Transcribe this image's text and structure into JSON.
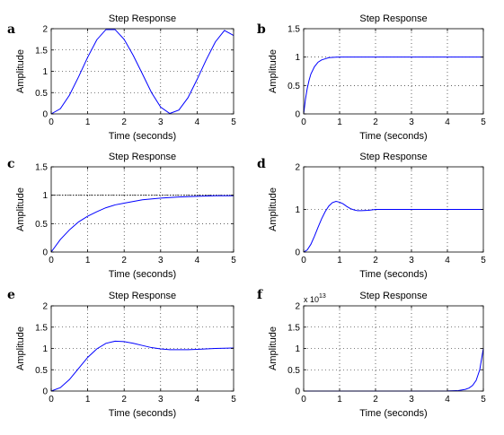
{
  "chart_data": [
    {
      "id": "a",
      "panel_label": "a",
      "type": "line",
      "title": "Step Response",
      "xlabel": "Time (seconds)",
      "ylabel": "Amplitude",
      "xlim": [
        0,
        5
      ],
      "ylim": [
        0,
        2
      ],
      "xticks": [
        0,
        1,
        2,
        3,
        4,
        5
      ],
      "yticks": [
        0,
        0.5,
        1,
        1.5,
        2
      ],
      "ytick_labels": [
        "0",
        "0.5",
        "1",
        "1.5",
        "2"
      ],
      "grid": true,
      "series": [
        {
          "color": "#0000ff",
          "x": [
            0,
            0.25,
            0.5,
            0.75,
            1,
            1.25,
            1.5,
            1.75,
            2,
            2.25,
            2.5,
            2.75,
            3,
            3.25,
            3.5,
            3.75,
            4,
            4.25,
            4.5,
            4.75,
            5
          ],
          "y": [
            0,
            0.12,
            0.44,
            0.87,
            1.33,
            1.74,
            1.98,
            1.98,
            1.75,
            1.37,
            0.94,
            0.5,
            0.16,
            0.01,
            0.09,
            0.38,
            0.81,
            1.27,
            1.69,
            1.96,
            1.84
          ]
        }
      ]
    },
    {
      "id": "b",
      "panel_label": "b",
      "type": "line",
      "title": "Step Response",
      "xlabel": "Time (seconds)",
      "ylabel": "Amplitude",
      "xlim": [
        0,
        5
      ],
      "ylim": [
        0,
        1.5
      ],
      "xticks": [
        0,
        1,
        2,
        3,
        4,
        5
      ],
      "yticks": [
        0,
        0.5,
        1,
        1.5
      ],
      "ytick_labels": [
        "0",
        "0.5",
        "1",
        "1.5"
      ],
      "grid": true,
      "series": [
        {
          "color": "#0000ff",
          "x": [
            0,
            0.05,
            0.1,
            0.15,
            0.2,
            0.3,
            0.4,
            0.5,
            0.6,
            0.7,
            0.8,
            0.9,
            1,
            1.5,
            2,
            3,
            4,
            5
          ],
          "y": [
            0,
            0.26,
            0.45,
            0.59,
            0.7,
            0.83,
            0.91,
            0.95,
            0.97,
            0.99,
            0.995,
            0.998,
            1,
            1,
            1,
            1,
            1,
            1
          ]
        }
      ]
    },
    {
      "id": "c",
      "panel_label": "c",
      "type": "line",
      "title": "Step Response",
      "xlabel": "Time (seconds)",
      "ylabel": "Amplitude",
      "xlim": [
        0,
        5
      ],
      "ylim": [
        0,
        1.5
      ],
      "xticks": [
        0,
        1,
        2,
        3,
        4,
        5
      ],
      "yticks": [
        0,
        0.5,
        1,
        1.5
      ],
      "ytick_labels": [
        "0",
        "0.5",
        "1",
        "1.5"
      ],
      "grid": true,
      "reference_line": 1,
      "series": [
        {
          "color": "#0000ff",
          "x": [
            0,
            0.25,
            0.5,
            0.75,
            1,
            1.25,
            1.5,
            1.75,
            2,
            2.5,
            3,
            3.5,
            4,
            4.5,
            5
          ],
          "y": [
            0,
            0.22,
            0.39,
            0.53,
            0.63,
            0.71,
            0.78,
            0.83,
            0.86,
            0.92,
            0.95,
            0.97,
            0.98,
            0.99,
            0.99
          ]
        }
      ]
    },
    {
      "id": "d",
      "panel_label": "d",
      "type": "line",
      "title": "Step Response",
      "xlabel": "Time (seconds)",
      "ylabel": "Amplitude",
      "xlim": [
        0,
        5
      ],
      "ylim": [
        0,
        2
      ],
      "xticks": [
        0,
        1,
        2,
        3,
        4,
        5
      ],
      "yticks": [
        0,
        1,
        2
      ],
      "ytick_labels": [
        "0",
        "1",
        "2"
      ],
      "grid": true,
      "series": [
        {
          "color": "#0000ff",
          "x": [
            0,
            0.1,
            0.2,
            0.3,
            0.4,
            0.5,
            0.6,
            0.7,
            0.8,
            0.9,
            1,
            1.1,
            1.2,
            1.3,
            1.4,
            1.5,
            1.6,
            1.8,
            2,
            2.5,
            3,
            4,
            5
          ],
          "y": [
            0,
            0.05,
            0.18,
            0.37,
            0.58,
            0.78,
            0.95,
            1.08,
            1.16,
            1.19,
            1.17,
            1.13,
            1.07,
            1.02,
            0.99,
            0.97,
            0.97,
            0.98,
            1.0,
            1.0,
            1.0,
            1.0,
            1.0
          ]
        }
      ]
    },
    {
      "id": "e",
      "panel_label": "e",
      "type": "line",
      "title": "Step Response",
      "xlabel": "Time (seconds)",
      "ylabel": "Amplitude",
      "xlim": [
        0,
        5
      ],
      "ylim": [
        0,
        2
      ],
      "xticks": [
        0,
        1,
        2,
        3,
        4,
        5
      ],
      "yticks": [
        0,
        0.5,
        1,
        1.5,
        2
      ],
      "ytick_labels": [
        "0",
        "0.5",
        "1",
        "1.5",
        "2"
      ],
      "grid": true,
      "series": [
        {
          "color": "#0000ff",
          "x": [
            0,
            0.25,
            0.5,
            0.75,
            1,
            1.25,
            1.5,
            1.75,
            2,
            2.25,
            2.5,
            2.75,
            3,
            3.25,
            3.5,
            3.75,
            4,
            4.5,
            5
          ],
          "y": [
            0,
            0.08,
            0.27,
            0.53,
            0.79,
            0.99,
            1.12,
            1.17,
            1.16,
            1.12,
            1.07,
            1.02,
            0.99,
            0.97,
            0.97,
            0.97,
            0.98,
            1.0,
            1.01
          ]
        }
      ]
    },
    {
      "id": "f",
      "panel_label": "f",
      "type": "line",
      "title": "Step Response",
      "xlabel": "Time (seconds)",
      "ylabel": "Amplitude",
      "exponent_label": "x 10",
      "exponent_power": "13",
      "xlim": [
        0,
        5
      ],
      "ylim": [
        0,
        2
      ],
      "xticks": [
        0,
        1,
        2,
        3,
        4,
        5
      ],
      "yticks": [
        0,
        0.5,
        1,
        1.5,
        2
      ],
      "ytick_labels": [
        "0",
        "0.5",
        "1",
        "1.5",
        "2"
      ],
      "grid": true,
      "series": [
        {
          "color": "#0000ff",
          "x": [
            0,
            1,
            2,
            3,
            4,
            4.3,
            4.5,
            4.6,
            4.7,
            4.8,
            4.9,
            5
          ],
          "y": [
            0,
            0,
            0,
            0,
            0.002,
            0.01,
            0.04,
            0.07,
            0.13,
            0.25,
            0.5,
            1.0
          ]
        }
      ]
    }
  ]
}
